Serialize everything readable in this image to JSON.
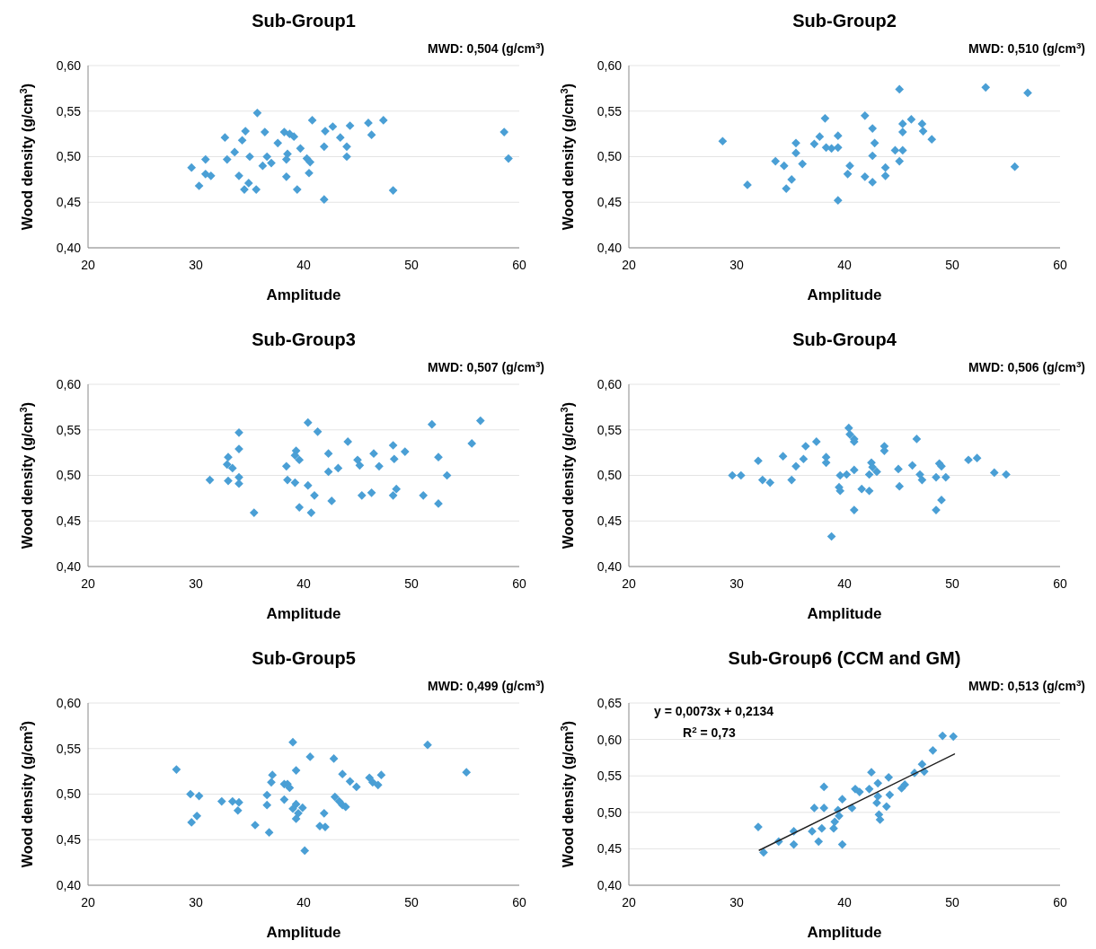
{
  "chart_data": [
    {
      "type": "scatter",
      "title": "Sub-Group1",
      "xlabel": "Amplitude",
      "ylabel": "Wood density (g/cm$^{3}$)",
      "annotations": [
        "MWD: 0,504 (g/cm$^{3}$)"
      ],
      "marker": "diamond",
      "grid": "y",
      "xlim": [
        20,
        60
      ],
      "xticks": [
        20,
        30,
        40,
        50,
        60
      ],
      "ylim": [
        0.4,
        0.6
      ],
      "yticks": [
        {
          "value": 0.4,
          "label": "0,40"
        },
        {
          "value": 0.45,
          "label": "0,45"
        },
        {
          "value": 0.5,
          "label": "0,50"
        },
        {
          "value": 0.55,
          "label": "0,55"
        },
        {
          "value": 0.6,
          "label": "0,60"
        }
      ],
      "series": [
        {
          "color": "#4a9fd5",
          "x": [
            35.7,
            40.8,
            47.4,
            46.0,
            44.3,
            42.7,
            42.0,
            34.6,
            36.4,
            38.2,
            38.7,
            39.1,
            46.3,
            58.6,
            32.7,
            34.3,
            43.4,
            37.6,
            41.9,
            44.0,
            39.7,
            33.6,
            38.5,
            36.6,
            35.0,
            44.0,
            59.0,
            30.9,
            32.9,
            40.3,
            38.4,
            40.6,
            37.0,
            36.2,
            29.6,
            40.5,
            30.9,
            31.4,
            34.0,
            38.4,
            30.3,
            34.9,
            34.5,
            35.6,
            39.4,
            48.3,
            41.9
          ],
          "values": [
            0.548,
            0.54,
            0.54,
            0.537,
            0.534,
            0.533,
            0.528,
            0.528,
            0.527,
            0.527,
            0.525,
            0.522,
            0.524,
            0.527,
            0.521,
            0.518,
            0.521,
            0.515,
            0.511,
            0.511,
            0.509,
            0.505,
            0.503,
            0.5,
            0.5,
            0.5,
            0.498,
            0.497,
            0.497,
            0.498,
            0.497,
            0.494,
            0.493,
            0.49,
            0.488,
            0.482,
            0.481,
            0.479,
            0.479,
            0.478,
            0.468,
            0.471,
            0.464,
            0.464,
            0.464,
            0.463,
            0.453
          ]
        }
      ]
    },
    {
      "type": "scatter",
      "title": "Sub-Group2",
      "xlabel": "Amplitude",
      "ylabel": "Wood density (g/cm$^{3}$)",
      "annotations": [
        "MWD: 0,510 (g/cm$^{3}$)"
      ],
      "marker": "diamond",
      "grid": "y",
      "xlim": [
        20,
        60
      ],
      "xticks": [
        20,
        30,
        40,
        50,
        60
      ],
      "ylim": [
        0.4,
        0.6
      ],
      "yticks": [
        {
          "value": 0.4,
          "label": "0,40"
        },
        {
          "value": 0.45,
          "label": "0,45"
        },
        {
          "value": 0.5,
          "label": "0,50"
        },
        {
          "value": 0.55,
          "label": "0,55"
        },
        {
          "value": 0.6,
          "label": "0,60"
        }
      ],
      "series": [
        {
          "color": "#4a9fd5",
          "x": [
            45.1,
            53.1,
            57.0,
            41.9,
            38.2,
            46.2,
            45.4,
            47.2,
            42.6,
            47.3,
            45.4,
            37.7,
            39.4,
            28.7,
            35.5,
            42.8,
            48.1,
            37.2,
            38.3,
            38.8,
            39.4,
            44.7,
            45.4,
            35.5,
            42.6,
            45.1,
            33.6,
            34.4,
            36.1,
            40.5,
            43.8,
            40.3,
            43.8,
            55.8,
            41.9,
            42.6,
            35.1,
            31.0,
            34.6,
            39.4
          ],
          "values": [
            0.574,
            0.576,
            0.57,
            0.545,
            0.542,
            0.541,
            0.536,
            0.536,
            0.531,
            0.528,
            0.527,
            0.522,
            0.523,
            0.517,
            0.515,
            0.515,
            0.519,
            0.514,
            0.51,
            0.509,
            0.51,
            0.507,
            0.507,
            0.504,
            0.501,
            0.495,
            0.495,
            0.49,
            0.492,
            0.49,
            0.488,
            0.481,
            0.479,
            0.489,
            0.478,
            0.472,
            0.475,
            0.469,
            0.465,
            0.452
          ]
        }
      ]
    },
    {
      "type": "scatter",
      "title": "Sub-Group3",
      "xlabel": "Amplitude",
      "ylabel": "Wood density (g/cm$^{3}$)",
      "annotations": [
        "MWD: 0,507 (g/cm$^{3}$)"
      ],
      "marker": "diamond",
      "grid": "y",
      "xlim": [
        20,
        60
      ],
      "xticks": [
        20,
        30,
        40,
        50,
        60
      ],
      "ylim": [
        0.4,
        0.6
      ],
      "yticks": [
        {
          "value": 0.4,
          "label": "0,40"
        },
        {
          "value": 0.45,
          "label": "0,45"
        },
        {
          "value": 0.5,
          "label": "0,50"
        },
        {
          "value": 0.55,
          "label": "0,55"
        },
        {
          "value": 0.6,
          "label": "0,60"
        }
      ],
      "series": [
        {
          "color": "#4a9fd5",
          "x": [
            40.4,
            51.9,
            56.4,
            34.0,
            41.3,
            44.1,
            55.6,
            34.0,
            48.3,
            49.4,
            39.3,
            39.2,
            39.6,
            42.3,
            46.5,
            33.0,
            48.4,
            52.5,
            45.0,
            45.2,
            32.9,
            33.4,
            38.4,
            47.0,
            43.2,
            42.3,
            53.3,
            34.0,
            31.3,
            33.0,
            34.0,
            38.5,
            39.2,
            40.4,
            41.0,
            48.6,
            46.3,
            45.4,
            48.3,
            51.1,
            42.6,
            52.5,
            39.6,
            35.4,
            40.7
          ],
          "values": [
            0.558,
            0.556,
            0.56,
            0.547,
            0.548,
            0.537,
            0.535,
            0.529,
            0.533,
            0.526,
            0.527,
            0.522,
            0.517,
            0.524,
            0.524,
            0.52,
            0.518,
            0.52,
            0.517,
            0.511,
            0.512,
            0.508,
            0.51,
            0.51,
            0.508,
            0.504,
            0.5,
            0.498,
            0.495,
            0.494,
            0.491,
            0.495,
            0.492,
            0.489,
            0.478,
            0.485,
            0.481,
            0.478,
            0.478,
            0.478,
            0.472,
            0.469,
            0.465,
            0.459,
            0.459
          ]
        }
      ]
    },
    {
      "type": "scatter",
      "title": "Sub-Group4",
      "xlabel": "Amplitude",
      "ylabel": "Wood density (g/cm$^{3}$)",
      "annotations": [
        "MWD: 0,506 (g/cm$^{3}$)"
      ],
      "marker": "diamond",
      "grid": "y",
      "xlim": [
        20,
        60
      ],
      "xticks": [
        20,
        30,
        40,
        50,
        60
      ],
      "ylim": [
        0.4,
        0.6
      ],
      "yticks": [
        {
          "value": 0.4,
          "label": "0,40"
        },
        {
          "value": 0.45,
          "label": "0,45"
        },
        {
          "value": 0.5,
          "label": "0,50"
        },
        {
          "value": 0.55,
          "label": "0,55"
        },
        {
          "value": 0.6,
          "label": "0,60"
        }
      ],
      "series": [
        {
          "color": "#4a9fd5",
          "x": [
            40.4,
            40.5,
            40.9,
            46.7,
            40.9,
            37.4,
            36.4,
            43.7,
            43.7,
            34.3,
            38.3,
            32.0,
            36.2,
            38.3,
            51.5,
            52.3,
            42.5,
            35.5,
            46.3,
            48.8,
            49.0,
            42.6,
            45.0,
            43.0,
            42.3,
            40.9,
            47.0,
            53.9,
            55.0,
            29.6,
            30.4,
            39.6,
            40.2,
            48.5,
            49.4,
            47.2,
            32.4,
            33.1,
            35.1,
            39.5,
            39.6,
            41.6,
            42.3,
            45.1,
            49.0,
            48.5,
            40.9,
            38.8
          ],
          "values": [
            0.552,
            0.545,
            0.54,
            0.54,
            0.537,
            0.537,
            0.532,
            0.532,
            0.527,
            0.521,
            0.52,
            0.516,
            0.518,
            0.514,
            0.517,
            0.519,
            0.514,
            0.51,
            0.511,
            0.513,
            0.51,
            0.509,
            0.507,
            0.504,
            0.501,
            0.506,
            0.501,
            0.503,
            0.501,
            0.5,
            0.5,
            0.5,
            0.501,
            0.498,
            0.498,
            0.495,
            0.495,
            0.492,
            0.495,
            0.487,
            0.483,
            0.485,
            0.483,
            0.488,
            0.473,
            0.462,
            0.462,
            0.433
          ]
        }
      ]
    },
    {
      "type": "scatter",
      "title": "Sub-Group5",
      "xlabel": "Amplitude",
      "ylabel": "Wood density (g/cm$^{3}$)",
      "annotations": [
        "MWD: 0,499 (g/cm$^{3}$)"
      ],
      "marker": "diamond",
      "grid": "y",
      "xlim": [
        20,
        60
      ],
      "xticks": [
        20,
        30,
        40,
        50,
        60
      ],
      "ylim": [
        0.4,
        0.6
      ],
      "yticks": [
        {
          "value": 0.4,
          "label": "0,40"
        },
        {
          "value": 0.45,
          "label": "0,45"
        },
        {
          "value": 0.5,
          "label": "0,50"
        },
        {
          "value": 0.55,
          "label": "0,55"
        },
        {
          "value": 0.6,
          "label": "0,60"
        }
      ],
      "series": [
        {
          "color": "#4a9fd5",
          "x": [
            39.0,
            51.5,
            40.6,
            42.8,
            28.2,
            39.3,
            55.1,
            37.1,
            43.6,
            47.2,
            46.1,
            37.0,
            44.3,
            38.2,
            38.5,
            38.7,
            46.4,
            46.9,
            44.9,
            29.5,
            30.3,
            36.6,
            42.9,
            38.2,
            32.4,
            33.4,
            34.0,
            43.3,
            43.6,
            36.6,
            39.3,
            39.9,
            39.0,
            43.9,
            33.9,
            39.5,
            41.9,
            30.1,
            39.3,
            29.6,
            35.5,
            41.5,
            42.0,
            36.8,
            40.1
          ],
          "values": [
            0.557,
            0.554,
            0.541,
            0.539,
            0.527,
            0.526,
            0.524,
            0.521,
            0.522,
            0.521,
            0.518,
            0.513,
            0.514,
            0.511,
            0.511,
            0.507,
            0.513,
            0.51,
            0.508,
            0.5,
            0.498,
            0.499,
            0.497,
            0.494,
            0.492,
            0.492,
            0.491,
            0.492,
            0.488,
            0.488,
            0.489,
            0.485,
            0.484,
            0.486,
            0.482,
            0.479,
            0.479,
            0.476,
            0.473,
            0.469,
            0.466,
            0.465,
            0.464,
            0.458,
            0.438
          ]
        }
      ]
    },
    {
      "type": "scatter",
      "title": "Sub-Group6 (CCM and GM)",
      "xlabel": "Amplitude",
      "ylabel": "Wood density (g/cm$^{3}$)",
      "annotations": [
        "MWD: 0,513 (g/cm$^{3}$)",
        "y = 0,0073x + 0,2134",
        "R$^{2}$ = 0,73"
      ],
      "marker": "diamond",
      "grid": "y",
      "xlim": [
        20,
        60
      ],
      "xticks": [
        20,
        30,
        40,
        50,
        60
      ],
      "ylim": [
        0.4,
        0.65
      ],
      "yticks": [
        {
          "value": 0.4,
          "label": "0,40"
        },
        {
          "value": 0.45,
          "label": "0,45"
        },
        {
          "value": 0.5,
          "label": "0,50"
        },
        {
          "value": 0.55,
          "label": "0,55"
        },
        {
          "value": 0.6,
          "label": "0,60"
        },
        {
          "value": 0.65,
          "label": "0,65"
        }
      ],
      "series": [
        {
          "color": "#4a9fd5",
          "x": [
            49.1,
            50.1,
            48.2,
            47.2,
            47.4,
            46.5,
            42.5,
            44.1,
            43.1,
            45.6,
            42.3,
            45.3,
            38.1,
            41.0,
            41.4,
            44.2,
            43.1,
            39.8,
            43.0,
            37.2,
            38.1,
            39.4,
            40.7,
            43.9,
            39.5,
            43.2,
            43.3,
            39.1,
            37.9,
            39.0,
            37.0,
            35.3,
            33.9,
            35.3,
            37.6,
            39.8,
            32.0,
            32.5
          ],
          "values": [
            0.605,
            0.604,
            0.585,
            0.566,
            0.556,
            0.554,
            0.555,
            0.548,
            0.54,
            0.538,
            0.532,
            0.533,
            0.535,
            0.532,
            0.528,
            0.524,
            0.522,
            0.518,
            0.513,
            0.506,
            0.506,
            0.503,
            0.506,
            0.508,
            0.495,
            0.497,
            0.49,
            0.487,
            0.478,
            0.478,
            0.474,
            0.474,
            0.46,
            0.456,
            0.46,
            0.456,
            0.48,
            0.445
          ]
        },
        {
          "type": "line",
          "marker": "none",
          "color": "#222222",
          "x": [
            32.1,
            50.2
          ],
          "values": [
            0.448,
            0.58
          ]
        }
      ]
    }
  ]
}
